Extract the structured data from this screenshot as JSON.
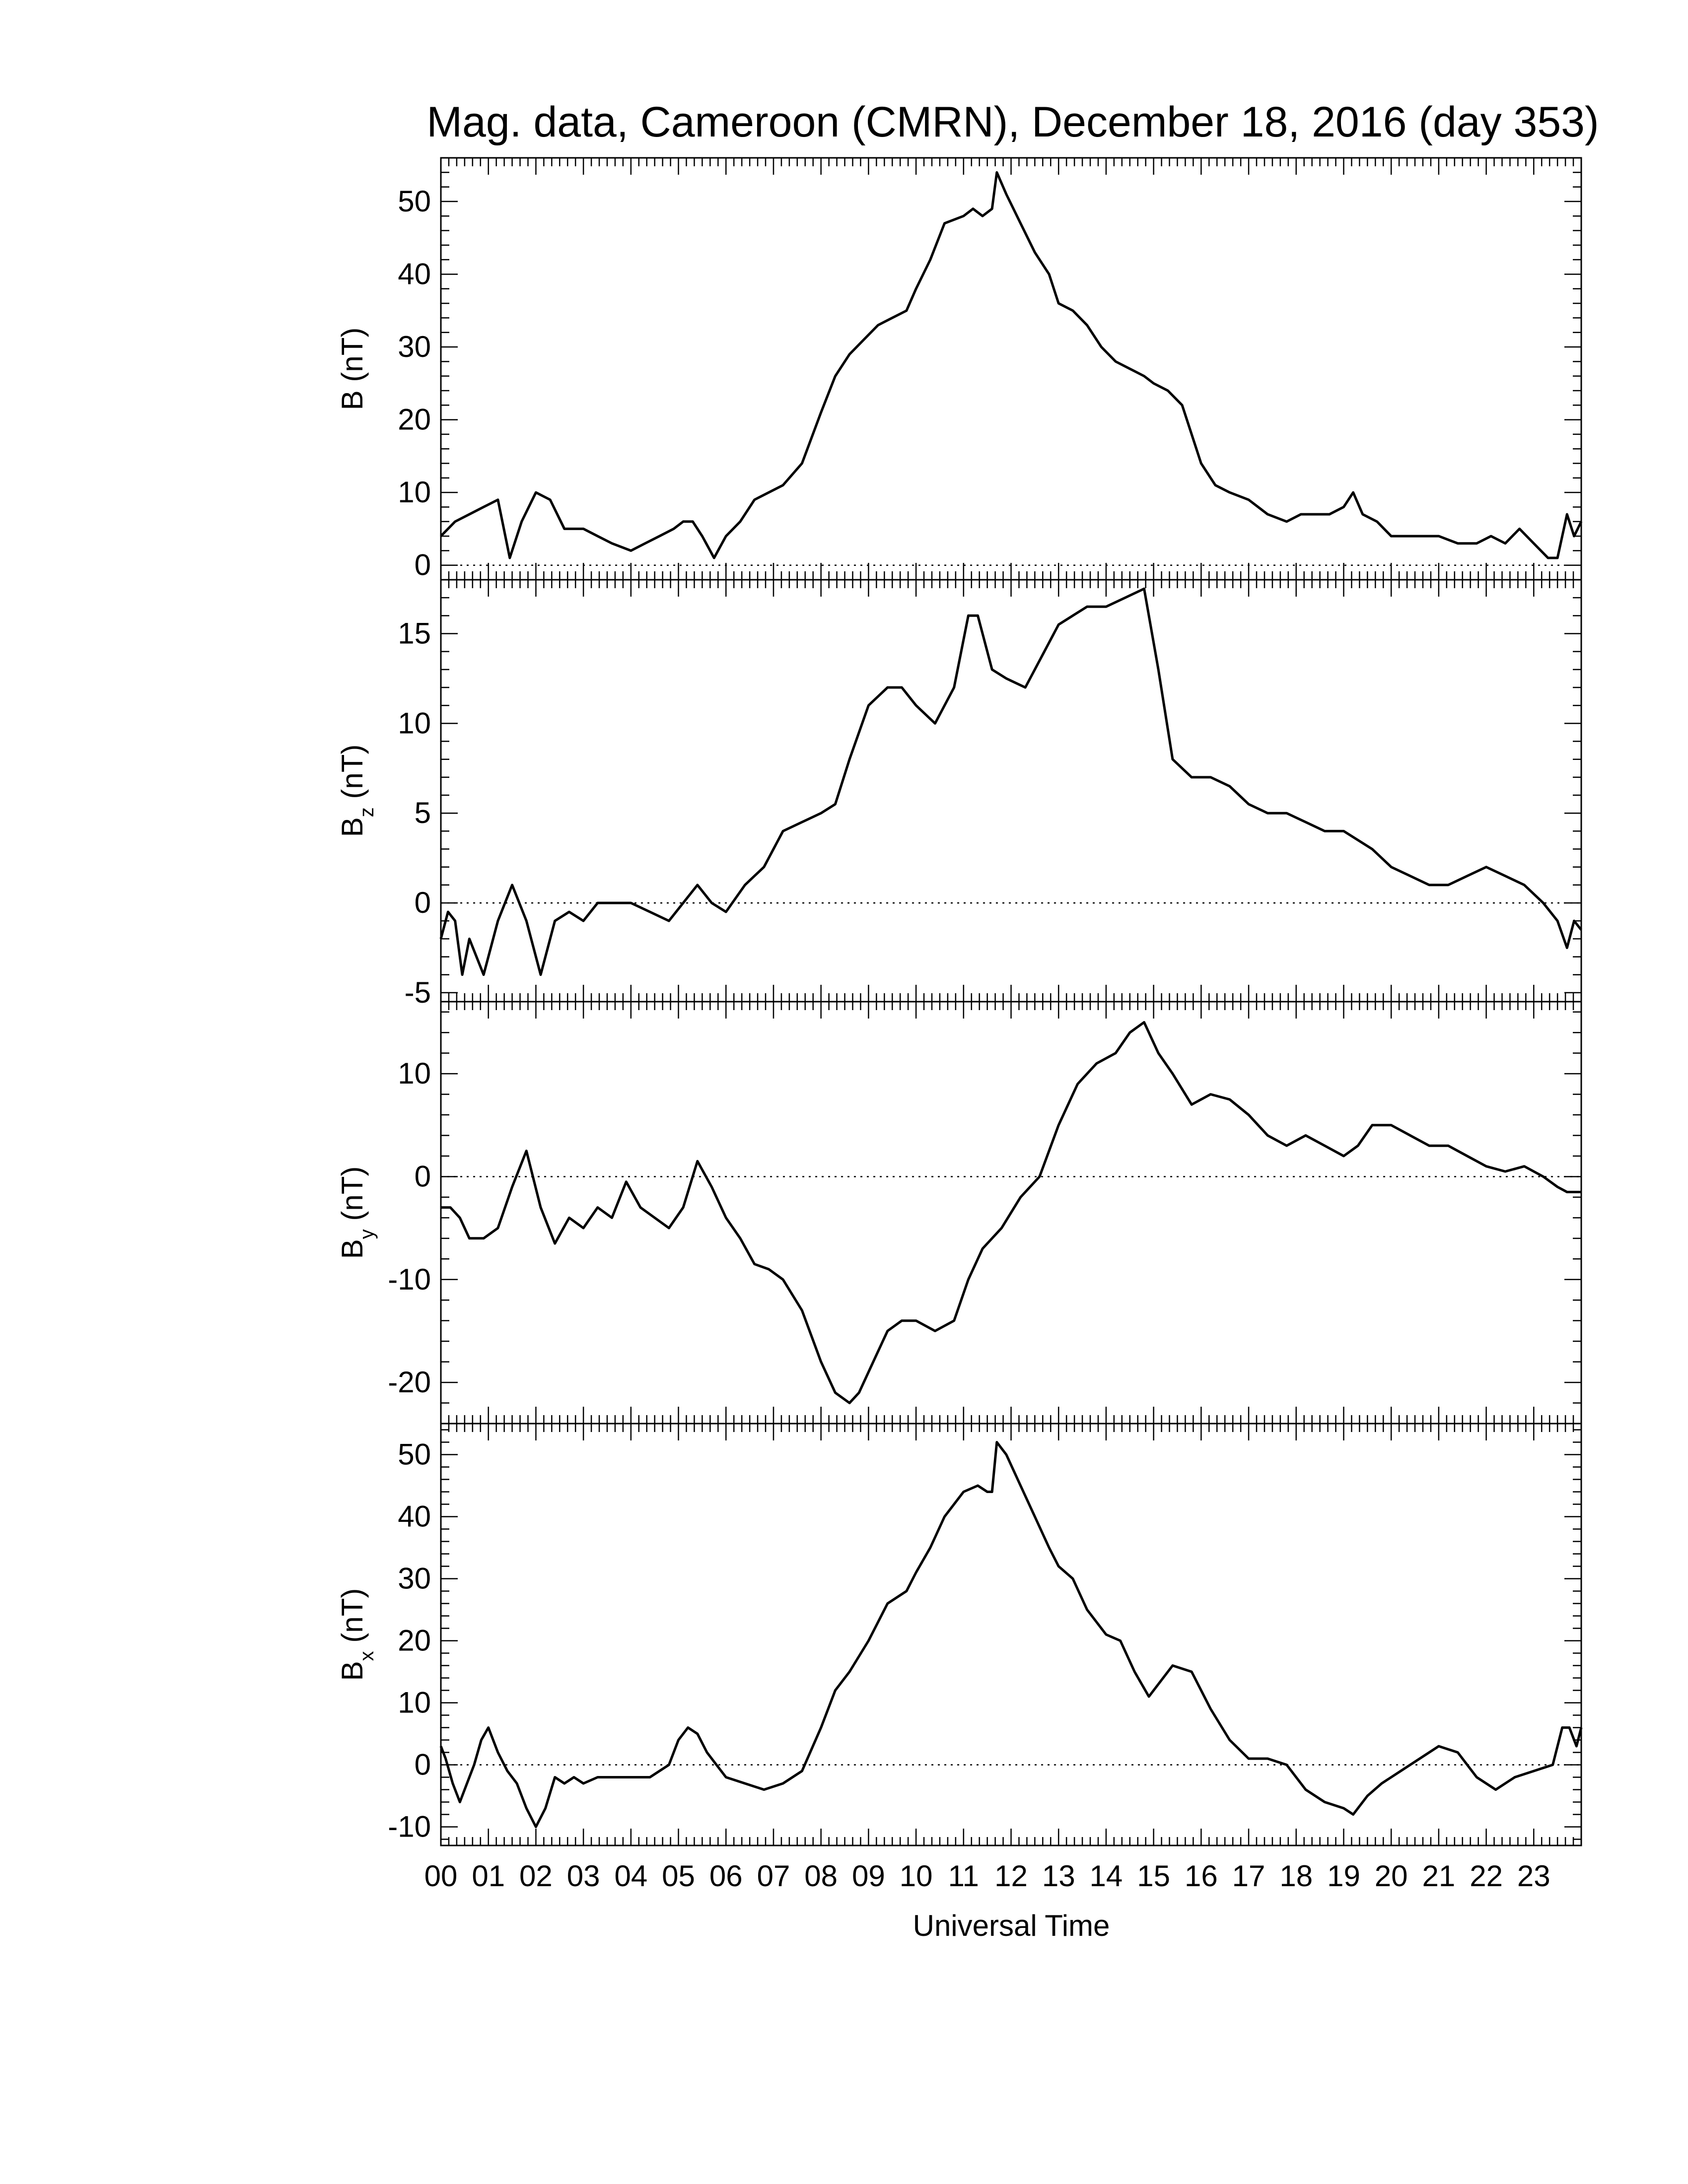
{
  "title": "Mag. data, Cameroon (CMRN), December 18, 2016 (day 353)",
  "xlabel": "Universal Time",
  "x_tick_labels": [
    "00",
    "01",
    "02",
    "03",
    "04",
    "05",
    "06",
    "07",
    "08",
    "09",
    "10",
    "11",
    "12",
    "13",
    "14",
    "15",
    "16",
    "17",
    "18",
    "19",
    "20",
    "21",
    "22",
    "23"
  ],
  "chart_data": [
    {
      "type": "line",
      "panel": "B",
      "ylabel": {
        "base": "B",
        "sub": "",
        "unit": " (nT)"
      },
      "xlim": [
        0,
        24
      ],
      "ylim": [
        -2,
        56
      ],
      "yticks": [
        0,
        10,
        20,
        30,
        40,
        50
      ],
      "zero_line": true,
      "x": [
        0,
        0.3,
        0.6,
        0.9,
        1.2,
        1.45,
        1.7,
        2.0,
        2.3,
        2.6,
        3.0,
        3.3,
        3.6,
        4.0,
        4.3,
        4.6,
        4.9,
        5.1,
        5.3,
        5.5,
        5.75,
        6.0,
        6.3,
        6.6,
        6.9,
        7.2,
        7.6,
        8.0,
        8.3,
        8.6,
        8.9,
        9.2,
        9.5,
        9.8,
        10.0,
        10.3,
        10.6,
        11.0,
        11.2,
        11.4,
        11.6,
        11.7,
        11.9,
        12.2,
        12.5,
        12.8,
        13.0,
        13.3,
        13.6,
        13.9,
        14.2,
        14.5,
        14.8,
        15.0,
        15.3,
        15.6,
        16.0,
        16.3,
        16.6,
        17.0,
        17.4,
        17.8,
        18.1,
        18.4,
        18.7,
        19.0,
        19.2,
        19.4,
        19.7,
        20.0,
        20.3,
        20.6,
        21.0,
        21.4,
        21.8,
        22.1,
        22.4,
        22.7,
        23.0,
        23.3,
        23.5,
        23.7,
        23.85,
        24.0
      ],
      "y": [
        4,
        6,
        7,
        8,
        9,
        1,
        6,
        10,
        9,
        5,
        5,
        4,
        3,
        2,
        3,
        4,
        5,
        6,
        6,
        4,
        1,
        4,
        6,
        9,
        10,
        11,
        14,
        21,
        26,
        29,
        31,
        33,
        34,
        35,
        38,
        42,
        47,
        48,
        49,
        48,
        49,
        54,
        51,
        47,
        43,
        40,
        36,
        35,
        33,
        30,
        28,
        27,
        26,
        25,
        24,
        22,
        14,
        11,
        10,
        9,
        7,
        6,
        7,
        7,
        7,
        8,
        10,
        7,
        6,
        4,
        4,
        4,
        4,
        3,
        3,
        4,
        3,
        5,
        3,
        1,
        1,
        7,
        4,
        6
      ]
    },
    {
      "type": "line",
      "panel": "Bz",
      "ylabel": {
        "base": "B",
        "sub": "z",
        "unit": " (nT)"
      },
      "xlim": [
        0,
        24
      ],
      "ylim": [
        -5.5,
        18
      ],
      "yticks": [
        -5,
        0,
        5,
        10,
        15
      ],
      "zero_line": true,
      "x": [
        0,
        0.15,
        0.3,
        0.45,
        0.6,
        0.9,
        1.2,
        1.5,
        1.8,
        2.1,
        2.4,
        2.7,
        3.0,
        3.3,
        3.6,
        4.0,
        4.4,
        4.8,
        5.1,
        5.4,
        5.7,
        6.0,
        6.4,
        6.8,
        7.2,
        7.6,
        8.0,
        8.3,
        8.6,
        9.0,
        9.4,
        9.7,
        10.0,
        10.4,
        10.8,
        11.1,
        11.3,
        11.6,
        11.9,
        12.3,
        12.7,
        13.0,
        13.3,
        13.6,
        14.0,
        14.4,
        14.8,
        15.1,
        15.4,
        15.8,
        16.2,
        16.6,
        17.0,
        17.4,
        17.8,
        18.2,
        18.6,
        19.0,
        19.3,
        19.6,
        20.0,
        20.4,
        20.8,
        21.2,
        21.6,
        22.0,
        22.4,
        22.8,
        23.2,
        23.5,
        23.7,
        23.85,
        24.0
      ],
      "y": [
        -2,
        -0.5,
        -1,
        -4,
        -2,
        -4,
        -1,
        1,
        -1,
        -4,
        -1,
        -0.5,
        -1,
        0,
        0,
        0,
        -0.5,
        -1,
        0,
        1,
        0,
        -0.5,
        1,
        2,
        4,
        4.5,
        5,
        5.5,
        8,
        11,
        12,
        12,
        11,
        10,
        12,
        16,
        16,
        13,
        12.5,
        12,
        14,
        15.5,
        16,
        16.5,
        16.5,
        17,
        17.5,
        13,
        8,
        7,
        7,
        6.5,
        5.5,
        5,
        5,
        4.5,
        4,
        4,
        3.5,
        3,
        2,
        1.5,
        1,
        1,
        1.5,
        2,
        1.5,
        1,
        0,
        -1,
        -2.5,
        -1,
        -1.5
      ]
    },
    {
      "type": "line",
      "panel": "By",
      "ylabel": {
        "base": "B",
        "sub": "y",
        "unit": " (nT)"
      },
      "xlim": [
        0,
        24
      ],
      "ylim": [
        -24,
        17
      ],
      "yticks": [
        -20,
        -10,
        0,
        10
      ],
      "zero_line": true,
      "x": [
        0,
        0.2,
        0.4,
        0.6,
        0.9,
        1.2,
        1.5,
        1.8,
        2.1,
        2.4,
        2.7,
        3.0,
        3.3,
        3.6,
        3.9,
        4.2,
        4.5,
        4.8,
        5.1,
        5.4,
        5.7,
        6.0,
        6.3,
        6.6,
        6.9,
        7.2,
        7.6,
        8.0,
        8.3,
        8.6,
        8.8,
        9.1,
        9.4,
        9.7,
        10.0,
        10.4,
        10.8,
        11.1,
        11.4,
        11.8,
        12.2,
        12.6,
        13.0,
        13.4,
        13.8,
        14.2,
        14.5,
        14.8,
        15.1,
        15.4,
        15.8,
        16.2,
        16.6,
        17.0,
        17.4,
        17.8,
        18.2,
        18.6,
        19.0,
        19.3,
        19.6,
        20.0,
        20.4,
        20.8,
        21.2,
        21.6,
        22.0,
        22.4,
        22.8,
        23.2,
        23.5,
        23.7,
        24.0
      ],
      "y": [
        -3,
        -3,
        -4,
        -6,
        -6,
        -5,
        -1,
        2.5,
        -3,
        -6.5,
        -4,
        -5,
        -3,
        -4,
        -0.5,
        -3,
        -4,
        -5,
        -3,
        1.5,
        -1,
        -4,
        -6,
        -8.5,
        -9,
        -10,
        -13,
        -18,
        -21,
        -22,
        -21,
        -18,
        -15,
        -14,
        -14,
        -15,
        -14,
        -10,
        -7,
        -5,
        -2,
        0,
        5,
        9,
        11,
        12,
        14,
        15,
        12,
        10,
        7,
        8,
        7.5,
        6,
        4,
        3,
        4,
        3,
        2,
        3,
        5,
        5,
        4,
        3,
        3,
        2,
        1,
        0.5,
        1,
        0,
        -1,
        -1.5,
        -1.5
      ]
    },
    {
      "type": "line",
      "panel": "Bx",
      "ylabel": {
        "base": "B",
        "sub": "x",
        "unit": " (nT)"
      },
      "xlim": [
        0,
        24
      ],
      "ylim": [
        -13,
        55
      ],
      "yticks": [
        -10,
        0,
        10,
        20,
        30,
        40,
        50
      ],
      "zero_line": true,
      "x": [
        0,
        0.1,
        0.25,
        0.4,
        0.55,
        0.7,
        0.85,
        1.0,
        1.2,
        1.4,
        1.6,
        1.8,
        2.0,
        2.2,
        2.4,
        2.6,
        2.8,
        3.0,
        3.3,
        3.6,
        4.0,
        4.4,
        4.8,
        5.0,
        5.2,
        5.4,
        5.6,
        5.8,
        6.0,
        6.4,
        6.8,
        7.2,
        7.6,
        8.0,
        8.3,
        8.6,
        9.0,
        9.4,
        9.8,
        10.0,
        10.3,
        10.6,
        11.0,
        11.3,
        11.5,
        11.6,
        11.7,
        11.9,
        12.2,
        12.5,
        12.8,
        13.0,
        13.3,
        13.6,
        14.0,
        14.3,
        14.6,
        14.9,
        15.1,
        15.4,
        15.8,
        16.2,
        16.6,
        17.0,
        17.4,
        17.8,
        18.2,
        18.6,
        19.0,
        19.2,
        19.5,
        19.8,
        20.2,
        20.6,
        21.0,
        21.4,
        21.8,
        22.2,
        22.6,
        23.0,
        23.4,
        23.6,
        23.75,
        23.9,
        24.0
      ],
      "y": [
        3,
        1,
        -3,
        -6,
        -3,
        0,
        4,
        6,
        2,
        -1,
        -3,
        -7,
        -10,
        -7,
        -2,
        -3,
        -2,
        -3,
        -2,
        -2,
        -2,
        -2,
        0,
        4,
        6,
        5,
        2,
        0,
        -2,
        -3,
        -4,
        -3,
        -1,
        6,
        12,
        15,
        20,
        26,
        28,
        31,
        35,
        40,
        44,
        45,
        44,
        44,
        52,
        50,
        45,
        40,
        35,
        32,
        30,
        25,
        21,
        20,
        15,
        11,
        13,
        16,
        15,
        9,
        4,
        1,
        1,
        0,
        -4,
        -6,
        -7,
        -8,
        -5,
        -3,
        -1,
        1,
        3,
        2,
        -2,
        -4,
        -2,
        -1,
        0,
        6,
        6,
        3,
        6
      ]
    }
  ]
}
